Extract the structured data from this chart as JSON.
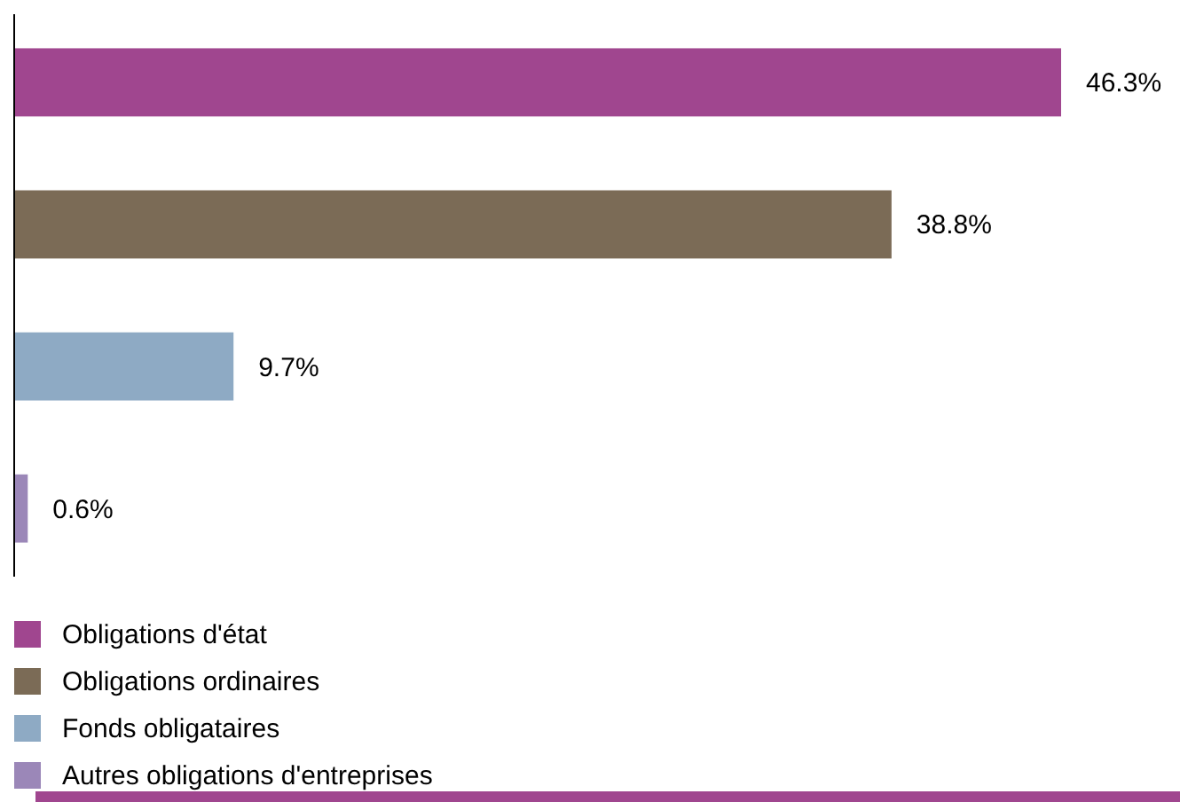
{
  "chart_data": {
    "type": "bar",
    "orientation": "horizontal",
    "stacked": true,
    "categories": [
      null,
      null,
      null,
      null
    ],
    "series": [
      {
        "name": "Obligations d'état",
        "color": "#a0468f",
        "values": [
          46.3,
          null,
          null,
          null
        ],
        "value_labels": [
          "46.3%",
          null,
          null,
          null
        ]
      },
      {
        "name": "Obligations ordinaires",
        "color": "#7b6b56",
        "values": [
          null,
          38.8,
          null,
          null
        ],
        "value_labels": [
          null,
          "38.8%",
          null,
          null
        ]
      },
      {
        "name": "Fonds obligataires",
        "color": "#8eaac4",
        "values": [
          null,
          null,
          9.7,
          null
        ],
        "value_labels": [
          null,
          null,
          "9.7%",
          null
        ]
      },
      {
        "name": "Autres obligations d'entreprises",
        "color": "#9b87b8",
        "values": [
          null,
          null,
          null,
          0.6
        ],
        "value_labels": [
          null,
          null,
          null,
          "0.6%"
        ]
      }
    ],
    "legend": "bottom"
  }
}
